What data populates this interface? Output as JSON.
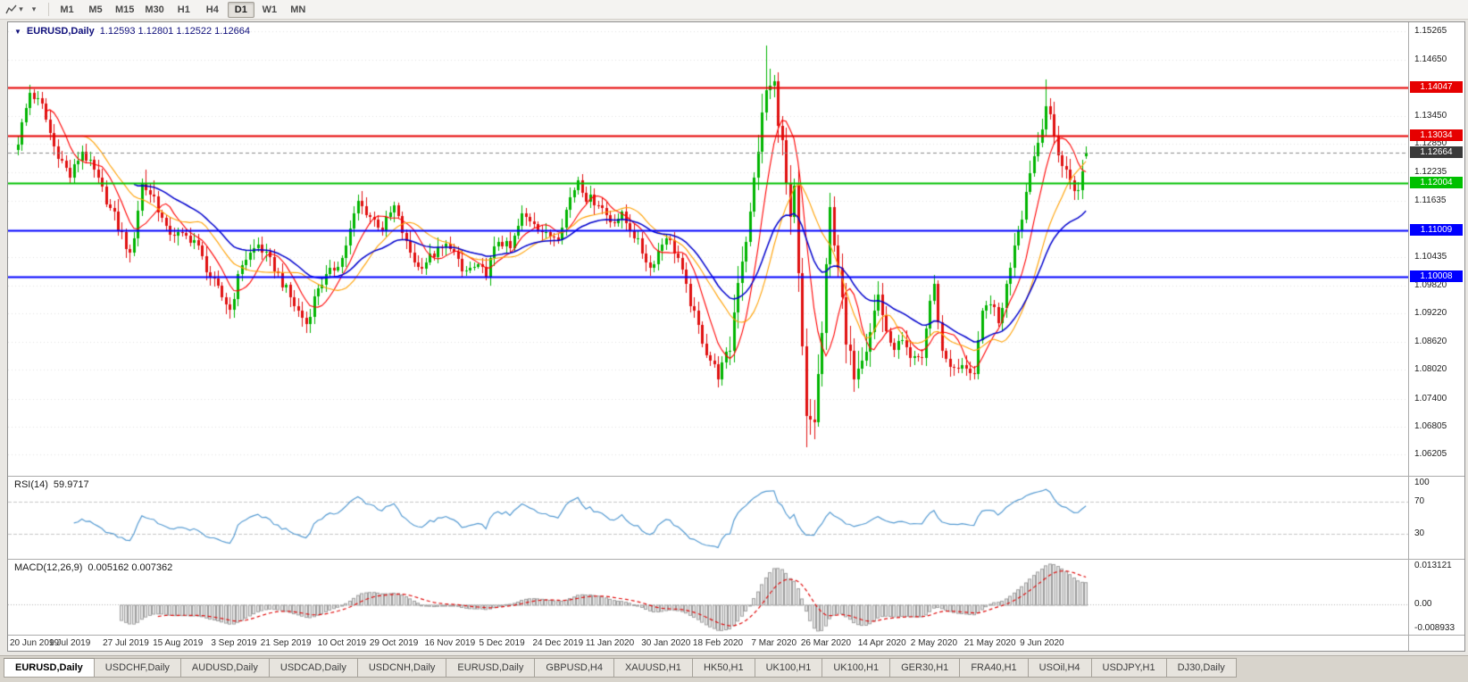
{
  "icons": {
    "dropdown_caret": "▾",
    "symbol_marker": "▼"
  },
  "toolbar": {
    "timeframes": [
      {
        "label": "M1",
        "active": false
      },
      {
        "label": "M5",
        "active": false
      },
      {
        "label": "M15",
        "active": false
      },
      {
        "label": "M30",
        "active": false
      },
      {
        "label": "H1",
        "active": false
      },
      {
        "label": "H4",
        "active": false
      },
      {
        "label": "D1",
        "active": true
      },
      {
        "label": "W1",
        "active": false
      },
      {
        "label": "MN",
        "active": false
      }
    ]
  },
  "tabs": [
    {
      "label": "EURUSD,Daily",
      "active": true
    },
    {
      "label": "USDCHF,Daily",
      "active": false
    },
    {
      "label": "AUDUSD,Daily",
      "active": false
    },
    {
      "label": "USDCAD,Daily",
      "active": false
    },
    {
      "label": "USDCNH,Daily",
      "active": false
    },
    {
      "label": "EURUSD,Daily",
      "active": false
    },
    {
      "label": "GBPUSD,H4",
      "active": false
    },
    {
      "label": "XAUUSD,H1",
      "active": false
    },
    {
      "label": "HK50,H1",
      "active": false
    },
    {
      "label": "UK100,H1",
      "active": false
    },
    {
      "label": "UK100,H1",
      "active": false
    },
    {
      "label": "GER30,H1",
      "active": false
    },
    {
      "label": "FRA40,H1",
      "active": false
    },
    {
      "label": "USOil,H4",
      "active": false
    },
    {
      "label": "USDJPY,H1",
      "active": false
    },
    {
      "label": "DJ30,Daily",
      "active": false
    }
  ],
  "chart_data": {
    "type": "candlestick",
    "symbol": "EURUSD",
    "timeframe": "Daily",
    "title_text": "EURUSD,Daily",
    "ohlc_text": "1.12593 1.12801 1.12522 1.12664",
    "ohlc_display": {
      "open": 1.12593,
      "high": 1.12801,
      "low": 1.12522,
      "close": 1.12664
    },
    "candle_count": 268,
    "colors": {
      "up": "#00b400",
      "down": "#e01010",
      "background": "#ffffff",
      "grid": "#e2e2e2"
    },
    "y_axis": {
      "min": 1.0575,
      "max": 1.1545,
      "tick_labels": [
        "1.15265",
        "1.14650",
        "1.13450",
        "1.12850",
        "1.12235",
        "1.11635",
        "1.10435",
        "1.09820",
        "1.09220",
        "1.08620",
        "1.08020",
        "1.07400",
        "1.06805",
        "1.06205"
      ]
    },
    "x_axis": {
      "labels": [
        "20 Jun 2019",
        "9 Jul 2019",
        "27 Jul 2019",
        "15 Aug 2019",
        "3 Sep 2019",
        "21 Sep 2019",
        "10 Oct 2019",
        "29 Oct 2019",
        "16 Nov 2019",
        "5 Dec 2019",
        "24 Dec 2019",
        "11 Jan 2020",
        "30 Jan 2020",
        "18 Feb 2020",
        "7 Mar 2020",
        "26 Mar 2020",
        "14 Apr 2020",
        "2 May 2020",
        "21 May 2020",
        "9 Jun 2020"
      ],
      "candle_indices": [
        0,
        13,
        27,
        40,
        54,
        67,
        81,
        94,
        108,
        121,
        135,
        148,
        162,
        175,
        189,
        202,
        216,
        229,
        243,
        256
      ]
    },
    "horizontal_lines": [
      {
        "price": 1.14047,
        "label": "1.14047",
        "color": "#e60000",
        "style": "solid",
        "name": "resistance-line-1"
      },
      {
        "price": 1.13034,
        "label": "1.13034",
        "color": "#e60000",
        "style": "solid",
        "name": "resistance-line-2"
      },
      {
        "price": 1.12664,
        "label": "1.12664",
        "color": "#3a3a3a",
        "style": "current",
        "name": "current-price-line"
      },
      {
        "price": 1.12004,
        "label": "1.12004",
        "color": "#00c000",
        "style": "solid",
        "name": "support-line-1"
      },
      {
        "price": 1.11009,
        "label": "1.11009",
        "color": "#0000ff",
        "style": "solid",
        "name": "support-line-2"
      },
      {
        "price": 1.10008,
        "label": "1.10008",
        "color": "#0000ff",
        "style": "solid",
        "name": "support-line-3"
      }
    ],
    "moving_averages": [
      {
        "period": 8,
        "type": "sma",
        "color": "#ff0000",
        "name": "ma-fast-red"
      },
      {
        "period": 17,
        "type": "sma",
        "color": "#ffa000",
        "name": "ma-medium-orange"
      },
      {
        "period": 30,
        "type": "ema",
        "color": "#0000cd",
        "name": "ma-slow-blue"
      }
    ],
    "close_keyframes": [
      [
        0,
        1.129
      ],
      [
        3,
        1.1395
      ],
      [
        6,
        1.1365
      ],
      [
        9,
        1.128
      ],
      [
        13,
        1.1215
      ],
      [
        16,
        1.127
      ],
      [
        19,
        1.1225
      ],
      [
        23,
        1.1145
      ],
      [
        27,
        1.107
      ],
      [
        28,
        1.104
      ],
      [
        31,
        1.12
      ],
      [
        34,
        1.117
      ],
      [
        37,
        1.11
      ],
      [
        40,
        1.109
      ],
      [
        44,
        1.108
      ],
      [
        48,
        1.1
      ],
      [
        53,
        1.093
      ],
      [
        56,
        1.103
      ],
      [
        60,
        1.107
      ],
      [
        64,
        1.102
      ],
      [
        69,
        1.094
      ],
      [
        72,
        1.09
      ],
      [
        75,
        1.098
      ],
      [
        81,
        1.104
      ],
      [
        85,
        1.116
      ],
      [
        88,
        1.113
      ],
      [
        91,
        1.1105
      ],
      [
        94,
        1.115
      ],
      [
        97,
        1.107
      ],
      [
        100,
        1.102
      ],
      [
        104,
        1.105
      ],
      [
        108,
        1.107
      ],
      [
        111,
        1.101
      ],
      [
        114,
        1.102
      ],
      [
        117,
        1.101
      ],
      [
        120,
        1.108
      ],
      [
        123,
        1.106
      ],
      [
        126,
        1.113
      ],
      [
        129,
        1.112
      ],
      [
        132,
        1.1087
      ],
      [
        135,
        1.109
      ],
      [
        138,
        1.117
      ],
      [
        140,
        1.121
      ],
      [
        142,
        1.117
      ],
      [
        145,
        1.116
      ],
      [
        148,
        1.112
      ],
      [
        151,
        1.113
      ],
      [
        154,
        1.109
      ],
      [
        158,
        1.102
      ],
      [
        162,
        1.109
      ],
      [
        165,
        1.104
      ],
      [
        168,
        1.0945
      ],
      [
        172,
        1.084
      ],
      [
        175,
        1.079
      ],
      [
        178,
        1.085
      ],
      [
        180,
        1.1
      ],
      [
        183,
        1.113
      ],
      [
        185,
        1.128
      ],
      [
        187,
        1.14
      ],
      [
        189,
        1.141
      ],
      [
        191,
        1.128
      ],
      [
        193,
        1.111
      ],
      [
        194,
        1.118
      ],
      [
        195,
        1.0995
      ],
      [
        197,
        1.069
      ],
      [
        199,
        1.0695
      ],
      [
        201,
        1.088
      ],
      [
        203,
        1.114
      ],
      [
        205,
        1.103
      ],
      [
        207,
        1.085
      ],
      [
        209,
        1.08
      ],
      [
        212,
        1.086
      ],
      [
        215,
        1.096
      ],
      [
        218,
        1.085
      ],
      [
        221,
        1.086
      ],
      [
        223,
        1.082
      ],
      [
        226,
        1.083
      ],
      [
        228,
        1.095
      ],
      [
        229,
        1.098
      ],
      [
        231,
        1.084
      ],
      [
        234,
        1.08
      ],
      [
        237,
        1.081
      ],
      [
        239,
        1.079
      ],
      [
        241,
        1.092
      ],
      [
        243,
        1.095
      ],
      [
        245,
        1.09
      ],
      [
        247,
        1.098
      ],
      [
        249,
        1.1077
      ],
      [
        251,
        1.1135
      ],
      [
        253,
        1.123
      ],
      [
        255,
        1.129
      ],
      [
        257,
        1.137
      ],
      [
        259,
        1.13
      ],
      [
        261,
        1.124
      ],
      [
        263,
        1.121
      ],
      [
        265,
        1.118
      ],
      [
        267,
        1.12664
      ]
    ],
    "wick_overrides": [
      [
        3,
        "high",
        1.1412
      ],
      [
        187,
        "high",
        1.1495
      ],
      [
        197,
        "low",
        1.0636
      ],
      [
        257,
        "high",
        1.1422
      ]
    ],
    "volatility_zones": [
      [
        24,
        34,
        1.4
      ],
      [
        178,
        216,
        2.0
      ],
      [
        248,
        268,
        1.3
      ]
    ],
    "indicators": {
      "rsi": {
        "label": "RSI(14)",
        "period": 14,
        "value": "59.9717",
        "color": "#569bd2",
        "range": [
          0,
          100
        ],
        "levels": [
          {
            "value": 100,
            "label": "100",
            "dashed": false
          },
          {
            "value": 70,
            "label": "70",
            "dashed": true
          },
          {
            "value": 30,
            "label": "30",
            "dashed": true
          }
        ]
      },
      "macd": {
        "label": "MACD(12,26,9)",
        "fast": 12,
        "slow": 26,
        "signal": 9,
        "values": "0.005162 0.007362",
        "range": [
          -0.008933,
          0.013121
        ],
        "histogram_fill": "#e4e4e4",
        "histogram_stroke": "#a0a0a0",
        "signal_color": "#e01010",
        "axis_labels": [
          {
            "value": 0.013121,
            "label": "0.013121"
          },
          {
            "value": 0,
            "label": "0.00"
          },
          {
            "value": -0.008933,
            "label": "-0.008933"
          }
        ]
      }
    }
  }
}
